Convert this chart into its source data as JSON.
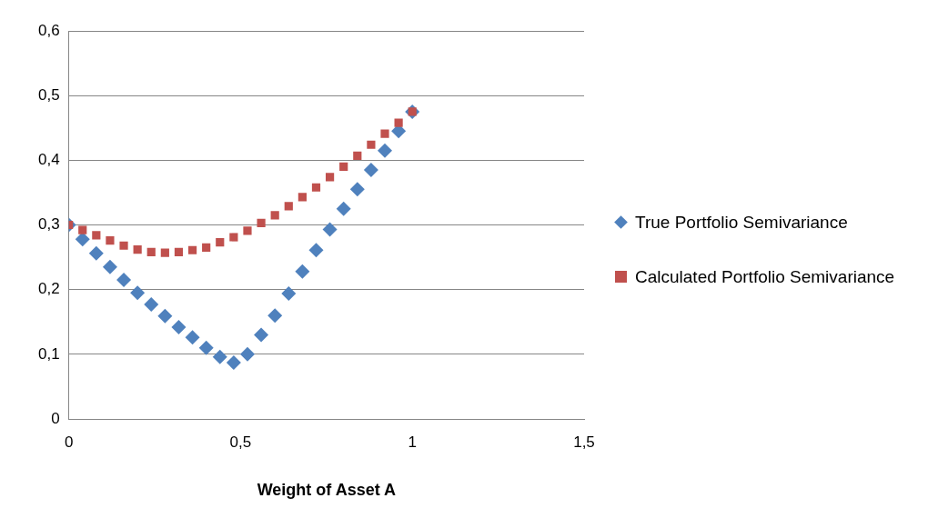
{
  "chart_data": {
    "type": "scatter",
    "xlabel": "Weight of Asset A",
    "x": [
      0,
      0.04,
      0.08,
      0.12,
      0.16,
      0.2,
      0.24,
      0.28,
      0.32,
      0.36,
      0.4,
      0.44,
      0.48,
      0.52,
      0.56,
      0.6,
      0.64,
      0.68,
      0.72,
      0.76,
      0.8,
      0.84,
      0.88,
      0.92,
      0.96,
      1
    ],
    "series": [
      {
        "name": "True Portfolio Semivariance",
        "color": "#4f81bd",
        "marker": "diamond",
        "values": [
          0.3,
          0.278,
          0.256,
          0.235,
          0.215,
          0.195,
          0.177,
          0.159,
          0.142,
          0.126,
          0.11,
          0.096,
          0.087,
          0.1,
          0.13,
          0.16,
          0.194,
          0.228,
          0.261,
          0.293,
          0.325,
          0.355,
          0.385,
          0.415,
          0.445,
          0.475
        ]
      },
      {
        "name": "Calculated Portfolio Semivariance",
        "color": "#c0504d",
        "marker": "square",
        "values": [
          0.3,
          0.292,
          0.284,
          0.276,
          0.268,
          0.262,
          0.258,
          0.257,
          0.258,
          0.261,
          0.265,
          0.273,
          0.281,
          0.291,
          0.303,
          0.315,
          0.329,
          0.343,
          0.358,
          0.374,
          0.39,
          0.407,
          0.424,
          0.441,
          0.458,
          0.475
        ]
      }
    ],
    "xlim": [
      0,
      1.5
    ],
    "xticks": [
      0,
      {
        "value": 0.5,
        "label": "0,5"
      },
      1,
      {
        "value": 1.5,
        "label": "1,5"
      }
    ],
    "ylim": [
      0,
      0.6
    ],
    "yticks": [
      0,
      {
        "value": 0.1,
        "label": "0,1"
      },
      {
        "value": 0.2,
        "label": "0,2"
      },
      {
        "value": 0.3,
        "label": "0,3"
      },
      {
        "value": 0.4,
        "label": "0,4"
      },
      {
        "value": 0.5,
        "label": "0,5"
      },
      {
        "value": 0.6,
        "label": "0,6"
      }
    ],
    "grid": "y",
    "legend": "right"
  }
}
